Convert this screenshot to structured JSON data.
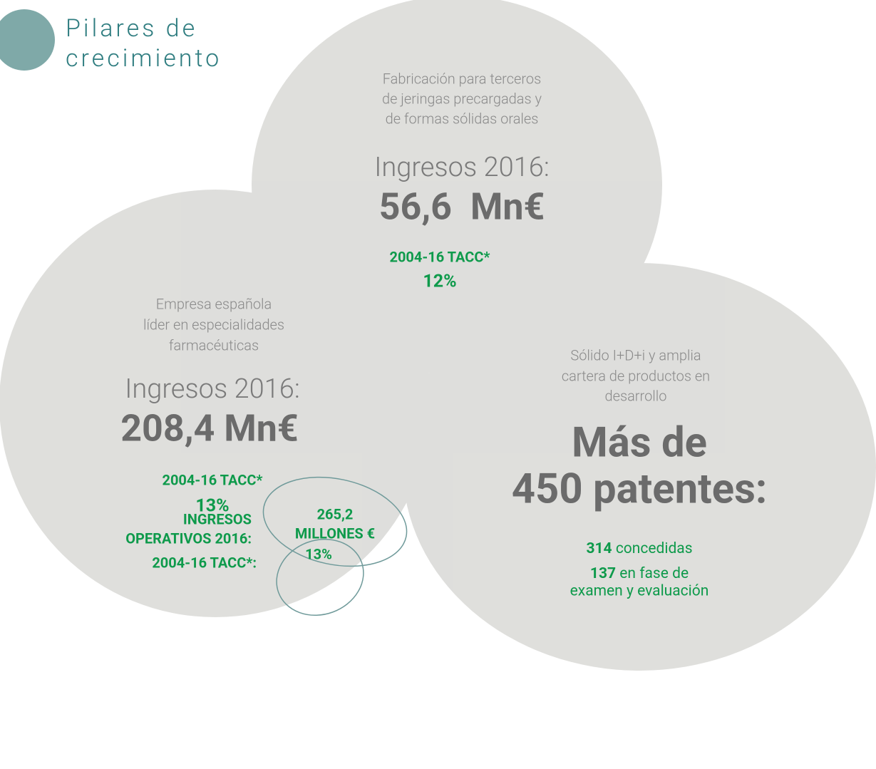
{
  "header": {
    "title_lines": [
      "Pilares de",
      "crecimiento"
    ]
  },
  "pillars": [
    {
      "description_lines": [
        "Fabricación para terceros",
        "de jeringas precargadas y",
        "de formas sólidas orales"
      ],
      "revenue_label": "Ingresos 2016:",
      "revenue": "56,6  Mn€",
      "cagr_label": "2004-16 TACC*",
      "cagr": "12%"
    },
    {
      "description_lines": [
        "Empresa española",
        "líder en especialidades",
        "farmacéuticas"
      ],
      "revenue_label": "Ingresos 2016:",
      "revenue": "208,4 Mn€",
      "cagr_label": "2004-16 TACC*",
      "cagr": "13%"
    }
  ],
  "patents": {
    "description_lines": [
      "Sólido I+D+i y amplia",
      "cartera de productos en",
      "desarrollo"
    ],
    "headline_lines": [
      "Más de",
      "450 patentes:"
    ],
    "granted": {
      "number": "314",
      "text": "concedidas"
    },
    "pending": {
      "number": "137",
      "text_lines": [
        "en fase de",
        "examen y evaluación"
      ]
    }
  },
  "totals": {
    "revenue_label_lines": [
      "INGRESOS",
      "OPERATIVOS 2016:"
    ],
    "revenue_lines": [
      "265,2",
      "MILLONES €"
    ],
    "cagr_label": "2004-16 TACC*:",
    "cagr": "13%"
  }
}
